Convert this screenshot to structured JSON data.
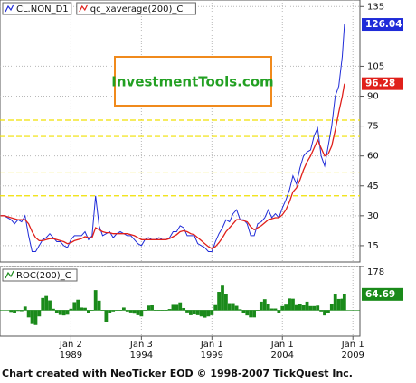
{
  "chart_data": [
    {
      "type": "line",
      "watermark": "InvestmentTools.com",
      "x": [
        1984,
        1984.25,
        1984.5,
        1984.75,
        1985,
        1985.25,
        1985.5,
        1985.75,
        1986,
        1986.25,
        1986.5,
        1986.75,
        1987,
        1987.25,
        1987.5,
        1987.75,
        1988,
        1988.25,
        1988.5,
        1988.75,
        1989,
        1989.25,
        1989.5,
        1989.75,
        1990,
        1990.25,
        1990.5,
        1990.75,
        1991,
        1991.25,
        1991.5,
        1991.75,
        1992,
        1992.25,
        1992.5,
        1992.75,
        1993,
        1993.25,
        1993.5,
        1993.75,
        1994,
        1994.25,
        1994.5,
        1994.75,
        1995,
        1995.25,
        1995.5,
        1995.75,
        1996,
        1996.25,
        1996.5,
        1996.75,
        1997,
        1997.25,
        1997.5,
        1997.75,
        1998,
        1998.25,
        1998.5,
        1998.75,
        1999,
        1999.25,
        1999.5,
        1999.75,
        2000,
        2000.25,
        2000.5,
        2000.75,
        2001,
        2001.25,
        2001.5,
        2001.75,
        2002,
        2002.25,
        2002.5,
        2002.75,
        2003,
        2003.25,
        2003.5,
        2003.75,
        2004,
        2004.25,
        2004.5,
        2004.75,
        2005,
        2005.25,
        2005.5,
        2005.75,
        2006,
        2006.25,
        2006.5,
        2006.75,
        2007,
        2007.25,
        2007.5,
        2007.75,
        2008,
        2008.25,
        2008.4
      ],
      "series": [
        {
          "name": "CL.NON_D1",
          "color": "#1f2bd8",
          "values": [
            30,
            30,
            29,
            28,
            26,
            28,
            27,
            30,
            20,
            12,
            12,
            15,
            18,
            19,
            21,
            19,
            17,
            17,
            15,
            14,
            18,
            20,
            20,
            20,
            22,
            18,
            20,
            40,
            25,
            20,
            21,
            22,
            19,
            21,
            22,
            21,
            20,
            20,
            18,
            16,
            15,
            18,
            19,
            18,
            18,
            19,
            18,
            18,
            19,
            22,
            22,
            25,
            24,
            20,
            20,
            20,
            16,
            15,
            14,
            12,
            12,
            17,
            21,
            24,
            28,
            27,
            31,
            33,
            28,
            28,
            26,
            20,
            20,
            26,
            27,
            29,
            33,
            29,
            31,
            29,
            34,
            38,
            43,
            50,
            46,
            54,
            60,
            62,
            63,
            70,
            74,
            60,
            55,
            65,
            75,
            90,
            95,
            110,
            126.04
          ]
        },
        {
          "name": "qc_xaverage(200)_C",
          "color": "#e0201b",
          "values": [
            30,
            30,
            29.5,
            29,
            28.5,
            28,
            28,
            28,
            26,
            22,
            19,
            17.5,
            17.5,
            18,
            18.5,
            18.5,
            18,
            17.5,
            17,
            16,
            16.5,
            17.5,
            18,
            18.5,
            19.5,
            19,
            19,
            24,
            23,
            22,
            21.5,
            21.5,
            21,
            21,
            21,
            21,
            21,
            20.5,
            20,
            19,
            18,
            18,
            18,
            18,
            18,
            18,
            18,
            18,
            18.5,
            19.5,
            20.5,
            22,
            22.5,
            22,
            21,
            20.5,
            19,
            17.5,
            16,
            14.5,
            13.5,
            14.5,
            16.5,
            19,
            22,
            24,
            26,
            28,
            28,
            27.5,
            27,
            24.5,
            23,
            24,
            25,
            26.5,
            28,
            28.5,
            29,
            29,
            30.5,
            33,
            37,
            42,
            44,
            48,
            53,
            57,
            60,
            64,
            68,
            64,
            60,
            61,
            65,
            73,
            82,
            90,
            96.28
          ]
        }
      ],
      "xlim": [
        1983.97,
        2009.5
      ],
      "ylim": [
        6.8,
        138.3
      ],
      "yticks": [
        15,
        30,
        45,
        60,
        75,
        90,
        105,
        135
      ],
      "hlines": [
        40,
        51.5,
        69.8,
        78
      ],
      "hline_color": "#f0e000",
      "grid": true
    },
    {
      "type": "bar",
      "footer": "Chart created with NeoTicker EOD © 1998-2007 TickQuest Inc.",
      "x": [
        1984,
        1984.25,
        1984.5,
        1984.75,
        1985,
        1985.25,
        1985.5,
        1985.75,
        1986,
        1986.25,
        1986.5,
        1986.75,
        1987,
        1987.25,
        1987.5,
        1987.75,
        1988,
        1988.25,
        1988.5,
        1988.75,
        1989,
        1989.25,
        1989.5,
        1989.75,
        1990,
        1990.25,
        1990.5,
        1990.75,
        1991,
        1991.25,
        1991.5,
        1991.75,
        1992,
        1992.25,
        1992.5,
        1992.75,
        1993,
        1993.25,
        1993.5,
        1993.75,
        1994,
        1994.25,
        1994.5,
        1994.75,
        1995,
        1995.25,
        1995.5,
        1995.75,
        1996,
        1996.25,
        1996.5,
        1996.75,
        1997,
        1997.25,
        1997.5,
        1997.75,
        1998,
        1998.25,
        1998.5,
        1998.75,
        1999,
        1999.25,
        1999.5,
        1999.75,
        2000,
        2000.25,
        2000.5,
        2000.75,
        2001,
        2001.25,
        2001.5,
        2001.75,
        2002,
        2002.25,
        2002.5,
        2002.75,
        2003,
        2003.25,
        2003.5,
        2003.75,
        2004,
        2004.25,
        2004.5,
        2004.75,
        2005,
        2005.25,
        2005.5,
        2005.75,
        2006,
        2006.25,
        2006.5,
        2006.75,
        2007,
        2007.25,
        2007.5,
        2007.75,
        2008,
        2008.25,
        2008.4
      ],
      "series": [
        {
          "name": "ROC(200)_C",
          "color": "#1a8a1a",
          "values": [
            null,
            null,
            null,
            -7,
            -13,
            -3,
            -4,
            15,
            -29,
            -56,
            -60,
            -25,
            50,
            58,
            40,
            6,
            -11,
            -19,
            -21,
            -18,
            6,
            33,
            43,
            11,
            10,
            -10,
            0,
            82,
            39,
            0,
            -48,
            -12,
            -5,
            0,
            0,
            11,
            -5,
            -9,
            -14,
            -20,
            -25,
            0,
            19,
            20,
            0,
            0,
            0,
            0,
            5,
            22,
            22,
            32,
            9,
            -9,
            -20,
            -17,
            -20,
            -25,
            -30,
            -25,
            -20,
            21,
            75,
            100,
            65,
            29,
            29,
            18,
            4,
            -10,
            -21,
            -29,
            -29,
            0,
            35,
            45,
            27,
            7,
            7,
            -12,
            17,
            23,
            48,
            47,
            21,
            26,
            20,
            35,
            17,
            17,
            19,
            -5,
            -21,
            -12,
            25,
            64,
            46,
            47,
            64.69
          ]
        }
      ],
      "xlim": [
        1983.97,
        2009.5
      ],
      "ylim": [
        -105,
        178
      ],
      "yticks": [
        178
      ],
      "xticks": [
        {
          "value": 1989.0,
          "label": "Jan 2",
          "year": "1989"
        },
        {
          "value": 1994.0,
          "label": "Jan 3",
          "year": "1994"
        },
        {
          "value": 1999.0,
          "label": "Jan 1",
          "year": "1999"
        },
        {
          "value": 2004.0,
          "label": "Jan 1",
          "year": "2004"
        },
        {
          "value": 2009.0,
          "label": "Jan 1",
          "year": "2009"
        }
      ],
      "grid": true
    }
  ]
}
